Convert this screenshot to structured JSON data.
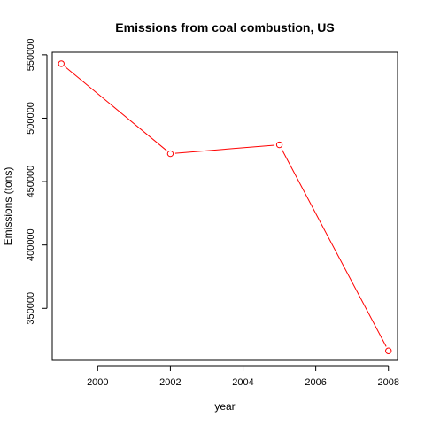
{
  "chart_data": {
    "type": "line",
    "title": "Emissions from coal combustion, US",
    "xlabel": "year",
    "ylabel": "Emissions (tons)",
    "x": [
      1999,
      2002,
      2005,
      2008
    ],
    "series": [
      {
        "values": [
          543000,
          472000,
          479000,
          316500
        ],
        "color": "#ff0000",
        "marker": "open-circle"
      }
    ],
    "xlim": [
      1998.75,
      2008.25
    ],
    "ylim": [
      309000,
      552000
    ],
    "x_ticks": [
      2000,
      2002,
      2004,
      2006,
      2008
    ],
    "y_ticks": [
      350000,
      400000,
      450000,
      500000,
      550000
    ],
    "grid": false,
    "legend": "none"
  }
}
